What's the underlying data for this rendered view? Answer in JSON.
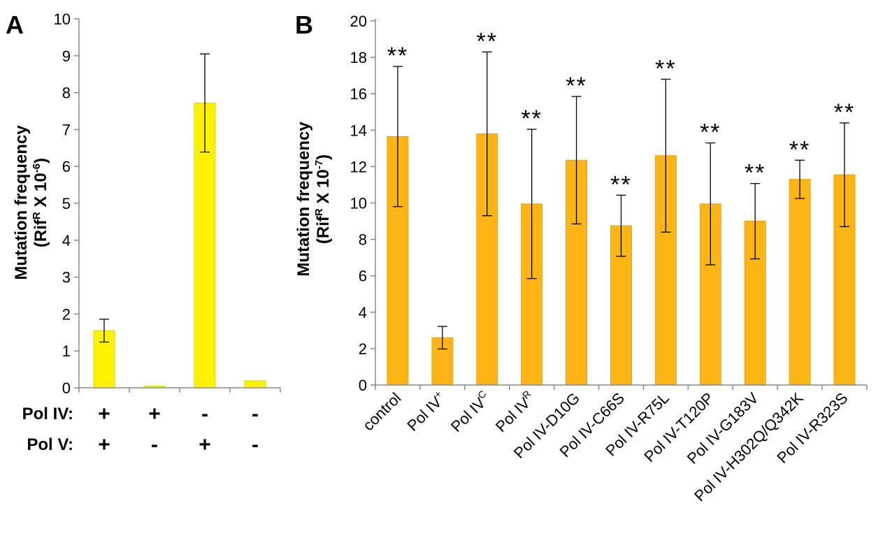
{
  "chart_data": [
    {
      "panel": "A",
      "type": "bar",
      "ylabel": "Mutation frequency",
      "ylabel_unit": "(Rif^R X 10^-6)",
      "ylabel_parts": {
        "pre": "(Rif",
        "sup1": "R",
        "mid": " X 10",
        "sup2": "-6",
        "post": ")"
      },
      "ylim": [
        0,
        10
      ],
      "yticks": [
        "0",
        "1",
        "2",
        "3",
        "4",
        "5",
        "6",
        "7",
        "8",
        "9",
        "10"
      ],
      "bar_color": "#FFF200",
      "bar_border": "#D8D800",
      "values": [
        1.55,
        0.05,
        7.72,
        0.19
      ],
      "errors": [
        0.31,
        0.0,
        1.33,
        0.0
      ],
      "rows": [
        {
          "label": "Pol IV:",
          "signs": [
            "+",
            "+",
            "-",
            "-"
          ]
        },
        {
          "label": "Pol V:",
          "signs": [
            "+",
            "-",
            "+",
            "-"
          ]
        }
      ]
    },
    {
      "panel": "B",
      "type": "bar",
      "ylabel": "Mutation frequency",
      "ylabel_unit": "(Rif^R X 10^-7)",
      "ylabel_parts": {
        "pre": "(Rif",
        "sup1": "R",
        "mid": " X 10",
        "sup2": "-7",
        "post": ")"
      },
      "ylim": [
        0,
        20
      ],
      "yticks": [
        "0",
        "2",
        "4",
        "6",
        "8",
        "10",
        "12",
        "14",
        "16",
        "18",
        "20"
      ],
      "bar_color": "#FDB515",
      "bar_border": "#F0A000",
      "categories": [
        {
          "base": "control",
          "sup": ""
        },
        {
          "base": "Pol IV",
          "sup": "+"
        },
        {
          "base": "Pol IV",
          "sup": "C"
        },
        {
          "base": "Pol IV",
          "sup": "R"
        },
        {
          "base": "Pol IV-D10G",
          "sup": ""
        },
        {
          "base": "Pol IV-C66S",
          "sup": ""
        },
        {
          "base": "Pol IV-R75L",
          "sup": ""
        },
        {
          "base": "Pol IV-T120P",
          "sup": ""
        },
        {
          "base": "Pol IV-G183V",
          "sup": ""
        },
        {
          "base": "Pol IV-H302Q/Q342K",
          "sup": ""
        },
        {
          "base": "Pol IV-R323S",
          "sup": ""
        }
      ],
      "values": [
        13.65,
        2.6,
        13.8,
        9.95,
        12.35,
        8.75,
        12.6,
        9.95,
        9.0,
        11.3,
        11.55
      ],
      "errors": [
        3.85,
        0.62,
        4.5,
        4.1,
        3.5,
        1.68,
        4.2,
        3.35,
        2.07,
        1.05,
        2.85
      ],
      "significance": [
        "**",
        "",
        "**",
        "**",
        "**",
        "**",
        "**",
        "**",
        "**",
        "**",
        "**"
      ]
    }
  ]
}
